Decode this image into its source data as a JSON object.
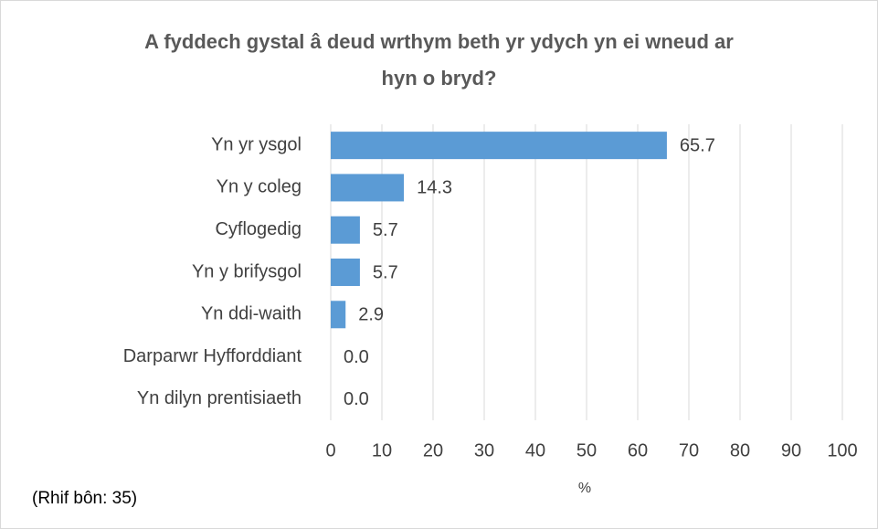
{
  "chart_data": {
    "type": "bar",
    "orientation": "horizontal",
    "title": "A fyddech gystal â deud wrthym beth yr ydych yn ei wneud ar hyn o bryd?",
    "categories": [
      "Yn yr ysgol",
      "Yn y coleg",
      "Cyflogedig",
      "Yn y brifysgol",
      "Yn ddi-waith",
      "Darparwr Hyfforddiant",
      "Yn dilyn prentisiaeth"
    ],
    "values": [
      65.7,
      14.3,
      5.7,
      5.7,
      2.9,
      0,
      0
    ],
    "value_labels": [
      "65.7",
      "14.3",
      "5.7",
      "5.7",
      "2.9",
      "0.0",
      "0.0"
    ],
    "color": "#5b9bd5",
    "xlim": [
      0,
      100
    ],
    "xticks": [
      0,
      10,
      20,
      30,
      40,
      50,
      60,
      70,
      80,
      90,
      100
    ],
    "xlabel": "%",
    "grid": true,
    "annotation": "(Rhif bôn: 35)"
  }
}
